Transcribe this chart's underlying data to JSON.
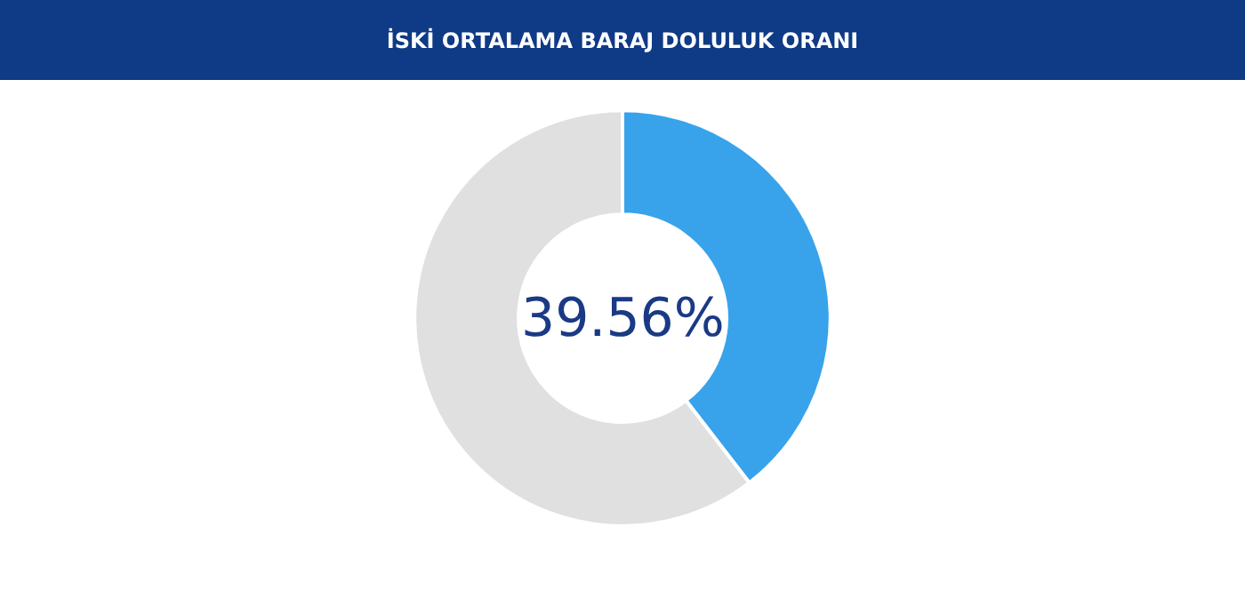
{
  "chart_data": {
    "type": "donut",
    "title": "İSKİ ORTALAMA BARAJ DOLULUK ORANI",
    "categories": [
      null,
      null
    ],
    "values": [
      39.56,
      60.44
    ],
    "colors": [
      "#38a3ea",
      "#e0e0e0"
    ],
    "annotations": [
      "39.56%"
    ],
    "legend": false
  }
}
